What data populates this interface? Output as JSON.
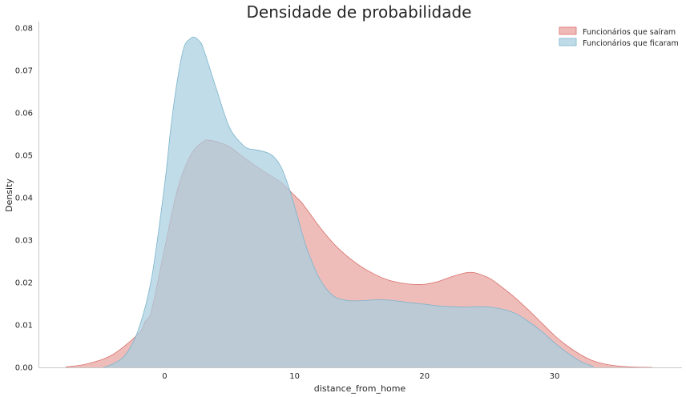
{
  "chart_data": {
    "type": "area",
    "title": "Densidade de probabilidade",
    "xlabel": "distance_from_home",
    "ylabel": "Density",
    "xlim": [
      -9.7,
      39.8
    ],
    "ylim": [
      0,
      0.0815
    ],
    "x_ticks": [
      0,
      10,
      20,
      30
    ],
    "y_ticks": [
      0.0,
      0.01,
      0.02,
      0.03,
      0.04,
      0.05,
      0.06,
      0.07,
      0.08
    ],
    "x_tick_labels": [
      "0",
      "10",
      "20",
      "30"
    ],
    "y_tick_labels": [
      "0.00",
      "0.01",
      "0.02",
      "0.03",
      "0.04",
      "0.05",
      "0.06",
      "0.07",
      "0.08"
    ],
    "grid": false,
    "legend_position": "top-right",
    "series": [
      {
        "name": "Funcionários que saíram",
        "color": "#e8a3a0",
        "edge_color": "#d9706b",
        "x": [
          -7.6,
          -6,
          -4,
          -2,
          -1.5,
          -1,
          0,
          1,
          2,
          3,
          3.5,
          4,
          5,
          6,
          7,
          8,
          9,
          10,
          10.5,
          11,
          12,
          13,
          14,
          15,
          16,
          17,
          18,
          19,
          20,
          21,
          22,
          23,
          23.5,
          24,
          25,
          26,
          27,
          28,
          29,
          30,
          31,
          32,
          33,
          34,
          35,
          36,
          37.5
        ],
        "y": [
          0.0001,
          0.0008,
          0.003,
          0.008,
          0.0108,
          0.0135,
          0.028,
          0.042,
          0.05,
          0.0533,
          0.0535,
          0.0532,
          0.052,
          0.0497,
          0.0475,
          0.0455,
          0.0435,
          0.0405,
          0.039,
          0.037,
          0.0328,
          0.0292,
          0.0263,
          0.024,
          0.0222,
          0.0208,
          0.02,
          0.0196,
          0.0196,
          0.0202,
          0.0213,
          0.0222,
          0.0224,
          0.0222,
          0.021,
          0.0188,
          0.0163,
          0.0135,
          0.0105,
          0.0075,
          0.005,
          0.003,
          0.0015,
          0.0007,
          0.0003,
          0.0001,
          0.0
        ]
      },
      {
        "name": "Funcionários que ficaram",
        "color": "#a9cfe0",
        "edge_color": "#79b4cc",
        "x": [
          -4.7,
          -4,
          -3,
          -2,
          -1,
          0,
          0.5,
          1,
          1.5,
          2,
          2.3,
          2.7,
          3,
          4,
          5,
          6,
          6.5,
          7,
          8,
          8.5,
          9,
          9.5,
          10,
          10.5,
          11,
          12,
          13,
          14,
          15,
          16,
          17,
          18,
          19,
          20,
          21,
          22,
          23,
          24,
          25,
          26,
          27,
          28,
          29,
          30,
          31,
          32,
          33
        ],
        "y": [
          0.0,
          0.0008,
          0.003,
          0.009,
          0.021,
          0.043,
          0.057,
          0.068,
          0.0755,
          0.0775,
          0.0778,
          0.0768,
          0.075,
          0.0655,
          0.0565,
          0.0525,
          0.0515,
          0.0513,
          0.0505,
          0.0493,
          0.047,
          0.043,
          0.038,
          0.0325,
          0.0275,
          0.0205,
          0.0168,
          0.0158,
          0.0157,
          0.0159,
          0.0159,
          0.0156,
          0.0152,
          0.0149,
          0.0145,
          0.0143,
          0.0142,
          0.0143,
          0.0142,
          0.0137,
          0.0127,
          0.0108,
          0.0085,
          0.0058,
          0.0034,
          0.0014,
          0.0002
        ]
      }
    ]
  }
}
